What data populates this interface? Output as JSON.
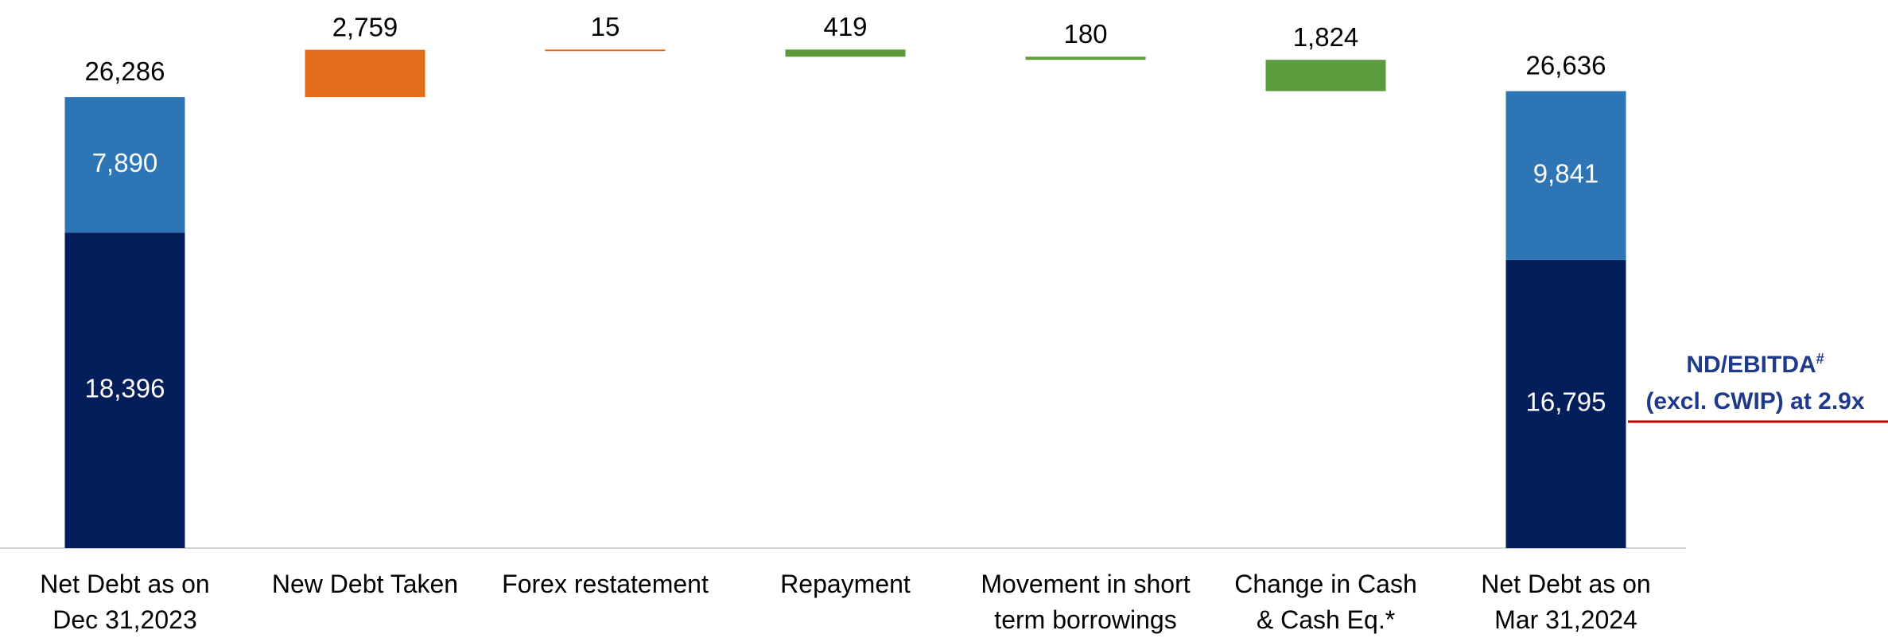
{
  "chart_data": {
    "type": "waterfall",
    "categories": [
      "Net Debt as on\nDec 31,2023",
      "New Debt Taken",
      "Forex restatement",
      "Repayment",
      "Movement in short\nterm borrowings",
      "Change in Cash\n& Cash Eq.*",
      "Net Debt as on\nMar 31,2024"
    ],
    "series": [
      {
        "color": "#041e5b",
        "values": [
          18396,
          null,
          null,
          null,
          null,
          null,
          16795
        ],
        "value_labels": [
          "18,396",
          null,
          null,
          null,
          null,
          null,
          "16,795"
        ]
      },
      {
        "color": "#2e75b6",
        "values": [
          7890,
          null,
          null,
          null,
          null,
          null,
          9841
        ],
        "value_labels": [
          "7,890",
          null,
          null,
          null,
          null,
          null,
          "9,841"
        ]
      }
    ],
    "totals": {
      "values": [
        26286,
        null,
        null,
        null,
        null,
        null,
        26636
      ],
      "value_labels": [
        "26,286",
        null,
        null,
        null,
        null,
        null,
        "26,636"
      ]
    },
    "steps": {
      "values": [
        null,
        2759,
        15,
        419,
        180,
        1824,
        null
      ],
      "value_labels": [
        null,
        "2,759",
        "15",
        "419",
        "180",
        "1,824",
        null
      ],
      "direction": [
        null,
        "up",
        "up",
        "down",
        "down",
        "down",
        null
      ],
      "colors": {
        "up": "#e36c1a",
        "down": "#5b9b3b"
      }
    },
    "ylim": [
      0,
      30000
    ],
    "annotation": {
      "text": "ND/EBITDA",
      "superscript": "#",
      "text2": "(excl. CWIP) at 2.9x",
      "color": "#1f3a8a",
      "line_color": "#c00000"
    }
  }
}
